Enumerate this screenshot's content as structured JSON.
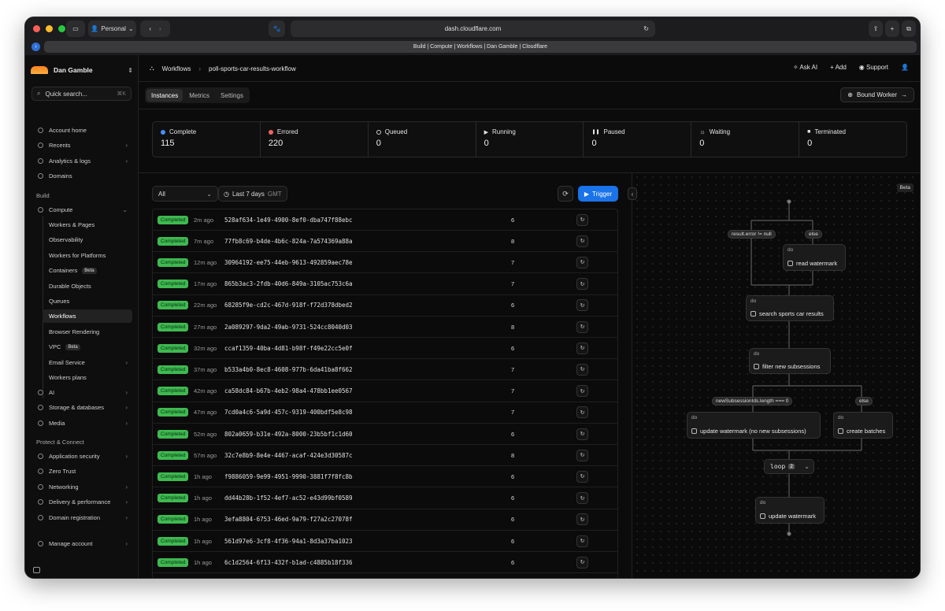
{
  "browser": {
    "profile": "Personal",
    "url": "dash.cloudflare.com",
    "tab_title": "Build | Compute | Workflows | Dan Gamble | Cloudflare"
  },
  "sidebar": {
    "account": "Dan Gamble",
    "search_label": "Quick search...",
    "search_shortcut": "⌘K",
    "items_top": [
      {
        "label": "Account home",
        "arrow": false
      },
      {
        "label": "Recents",
        "arrow": true
      },
      {
        "label": "Analytics & logs",
        "arrow": true
      },
      {
        "label": "Domains",
        "arrow": false
      }
    ],
    "section_build": "Build",
    "compute": {
      "label": "Compute",
      "arrow": "⌄"
    },
    "compute_items": [
      {
        "label": "Workers & Pages"
      },
      {
        "label": "Observability"
      },
      {
        "label": "Workers for Platforms"
      },
      {
        "label": "Containers",
        "beta": "Beta"
      },
      {
        "label": "Durable Objects"
      },
      {
        "label": "Queues"
      },
      {
        "label": "Workflows",
        "active": true
      },
      {
        "label": "Browser Rendering"
      },
      {
        "label": "VPC",
        "beta": "Beta"
      },
      {
        "label": "Email Service",
        "arrow": true
      },
      {
        "label": "Workers plans"
      }
    ],
    "items_build_rest": [
      {
        "label": "AI",
        "arrow": true
      },
      {
        "label": "Storage & databases",
        "arrow": true
      },
      {
        "label": "Media",
        "arrow": true
      }
    ],
    "section_protect": "Protect & Connect",
    "items_protect": [
      {
        "label": "Application security",
        "arrow": true
      },
      {
        "label": "Zero Trust",
        "arrow": false
      },
      {
        "label": "Networking",
        "arrow": true
      },
      {
        "label": "Delivery & performance",
        "arrow": true
      },
      {
        "label": "Domain registration",
        "arrow": true
      }
    ],
    "manage": "Manage account"
  },
  "header": {
    "crumb_root": "Workflows",
    "crumb_current": "poll-sports-car-results-workflow",
    "ask_ai": "Ask AI",
    "add": "Add",
    "support": "Support"
  },
  "tabs": [
    "Instances",
    "Metrics",
    "Settings"
  ],
  "bound_worker": "Bound Worker",
  "stats": [
    {
      "label": "Complete",
      "value": "115",
      "color": "#4a8cff",
      "shape": "dot"
    },
    {
      "label": "Errored",
      "value": "220",
      "color": "#f26262",
      "shape": "dot"
    },
    {
      "label": "Queued",
      "value": "0",
      "color": "#cccccc",
      "shape": "ring"
    },
    {
      "label": "Running",
      "value": "0",
      "color": "#e5e5e5",
      "shape": "play"
    },
    {
      "label": "Paused",
      "value": "0",
      "color": "#e5e5e5",
      "shape": "pause"
    },
    {
      "label": "Waiting",
      "value": "0",
      "color": "#e5e5e5",
      "shape": "sun"
    },
    {
      "label": "Terminated",
      "value": "0",
      "color": "#e5e5e5",
      "shape": "square"
    }
  ],
  "filter": {
    "status": "All",
    "range": "Last 7 days",
    "tz": "GMT"
  },
  "trigger": "Trigger",
  "instances": [
    {
      "status": "Completed",
      "ago": "2m ago",
      "id": "528af634-1e49-4900-8ef0-dba747f88ebc",
      "steps": "6"
    },
    {
      "status": "Completed",
      "ago": "7m ago",
      "id": "77fb8c69-b4de-4b6c-824a-7a574369a88a",
      "steps": "8"
    },
    {
      "status": "Completed",
      "ago": "12m ago",
      "id": "30964192-ee75-44eb-9613-492859aec78e",
      "steps": "7"
    },
    {
      "status": "Completed",
      "ago": "17m ago",
      "id": "865b3ac3-2fdb-40d6-849a-3105ac753c6a",
      "steps": "7"
    },
    {
      "status": "Completed",
      "ago": "22m ago",
      "id": "68285f9e-cd2c-467d-918f-f72d378dbed2",
      "steps": "6"
    },
    {
      "status": "Completed",
      "ago": "27m ago",
      "id": "2a089297-9da2-49ab-9731-524cc8040d03",
      "steps": "8"
    },
    {
      "status": "Completed",
      "ago": "32m ago",
      "id": "ccaf1359-40ba-4d81-b98f-f49e22cc5e0f",
      "steps": "6"
    },
    {
      "status": "Completed",
      "ago": "37m ago",
      "id": "b533a4b0-8ec8-4608-977b-6da41ba8f662",
      "steps": "7"
    },
    {
      "status": "Completed",
      "ago": "42m ago",
      "id": "ca58dc84-b67b-4eb2-98a4-478bb1ee0567",
      "steps": "7"
    },
    {
      "status": "Completed",
      "ago": "47m ago",
      "id": "7cd0a4c6-5a9d-457c-9319-400bdf5e8c98",
      "steps": "7"
    },
    {
      "status": "Completed",
      "ago": "52m ago",
      "id": "802a0659-b31e-492a-8000-23b5bf1c1d60",
      "steps": "6"
    },
    {
      "status": "Completed",
      "ago": "57m ago",
      "id": "32c7e8b9-8e4e-4467-acaf-424e3d30587c",
      "steps": "8"
    },
    {
      "status": "Completed",
      "ago": "1h ago",
      "id": "f9886059-9e99-4951-9990-3881f7f8fc8b",
      "steps": "6"
    },
    {
      "status": "Completed",
      "ago": "1h ago",
      "id": "dd44b28b-1f52-4ef7-ac52-e43d99bf0589",
      "steps": "6"
    },
    {
      "status": "Completed",
      "ago": "1h ago",
      "id": "3efa8804-6753-46ed-9a79-f27a2c27078f",
      "steps": "6"
    },
    {
      "status": "Completed",
      "ago": "1h ago",
      "id": "561d97e6-3cf8-4f36-94a1-8d3a37ba1023",
      "steps": "6"
    },
    {
      "status": "Completed",
      "ago": "1h ago",
      "id": "6c1d2564-6f13-432f-b1ad-c4885b18f336",
      "steps": "6"
    },
    {
      "status": "Completed",
      "ago": "",
      "id": "",
      "steps": ""
    }
  ],
  "graph": {
    "beta": "Beta",
    "do_label": "do",
    "cond_error": "result.error != null",
    "cond_else": "else",
    "cond_len": "newSubsessionIds.length === 0",
    "n_read": "read watermark",
    "n_search": "search sports car results",
    "n_filter": "filter new subsessions",
    "n_update_none": "update watermark (no new subsessions)",
    "n_batches": "create batches",
    "loop": "loop",
    "loop_count": "2",
    "n_update": "update watermark"
  }
}
